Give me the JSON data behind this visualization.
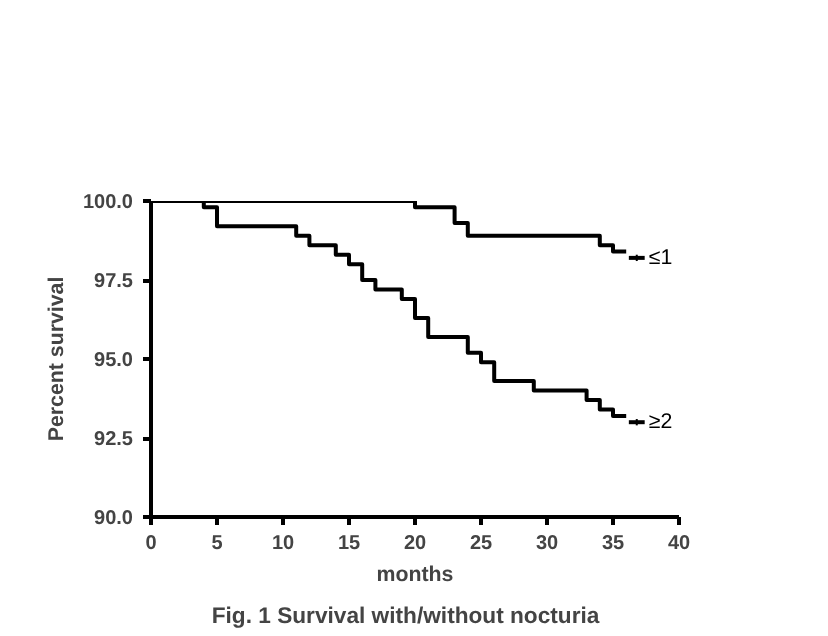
{
  "chart_data": {
    "type": "step",
    "xlabel": "months",
    "ylabel": "Percent survival",
    "annotations": [
      "Fig. 1    Survival with/without nocturia"
    ],
    "xlim": [
      0,
      40
    ],
    "xticks": [
      0,
      5,
      10,
      15,
      20,
      25,
      30,
      35,
      40
    ],
    "ylim": [
      90,
      100
    ],
    "yticks": [
      {
        "value": 90,
        "label": "90.0"
      },
      {
        "value": 92.5,
        "label": "92.5"
      },
      {
        "value": 95,
        "label": "95.0"
      },
      {
        "value": 97.5,
        "label": "97.5"
      },
      {
        "value": 100,
        "label": "100.0"
      }
    ],
    "grid": false,
    "legend": "right",
    "line_style": "solid",
    "series": [
      {
        "name": "≤1",
        "color": "#000000",
        "x": [
          0,
          20,
          23,
          24,
          34,
          35,
          36
        ],
        "values": [
          100,
          99.8,
          99.3,
          98.9,
          98.6,
          98.4,
          98.4
        ]
      },
      {
        "name": "≥2",
        "color": "#000000",
        "x": [
          0,
          4,
          5,
          11,
          12,
          14,
          15,
          16,
          17,
          19,
          20,
          21,
          24,
          25,
          26,
          29,
          33,
          34,
          35,
          36
        ],
        "values": [
          100,
          99.8,
          99.2,
          98.9,
          98.6,
          98.3,
          98.0,
          97.5,
          97.2,
          96.9,
          96.3,
          95.7,
          95.2,
          94.9,
          94.3,
          94.0,
          93.7,
          93.4,
          93.2,
          93.2
        ]
      }
    ]
  }
}
